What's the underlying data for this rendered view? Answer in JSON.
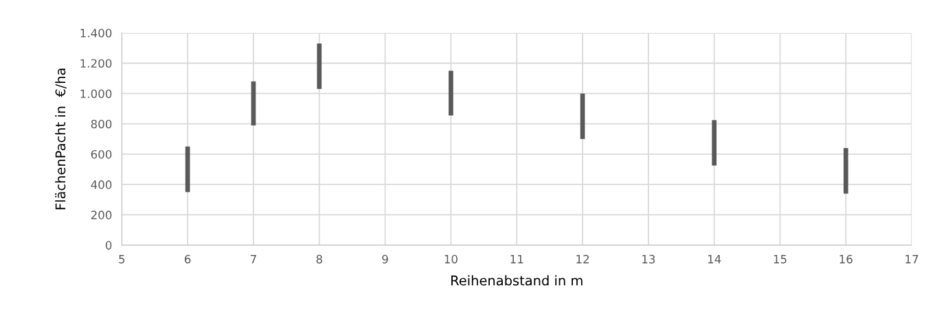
{
  "chart_data": {
    "type": "bar",
    "xlabel": "Reihenabstand in m",
    "ylabel": "FlächenPacht in  €/ha",
    "x": [
      6,
      7,
      8,
      10,
      12,
      14,
      16
    ],
    "base": [
      350,
      790,
      1030,
      855,
      700,
      525,
      340
    ],
    "values": [
      300,
      290,
      300,
      295,
      300,
      300,
      300
    ],
    "color": "#595959",
    "xlim": [
      5,
      17
    ],
    "xticks": [
      5,
      6,
      7,
      8,
      9,
      10,
      11,
      12,
      13,
      14,
      15,
      16,
      17
    ],
    "ylim": [
      0,
      1400
    ],
    "yticks": [
      0,
      200,
      400,
      600,
      800,
      {
        "value": 1000,
        "label": "1.000"
      },
      {
        "value": 1200,
        "label": "1.200"
      },
      {
        "value": 1400,
        "label": "1.400"
      }
    ],
    "grid": true
  }
}
